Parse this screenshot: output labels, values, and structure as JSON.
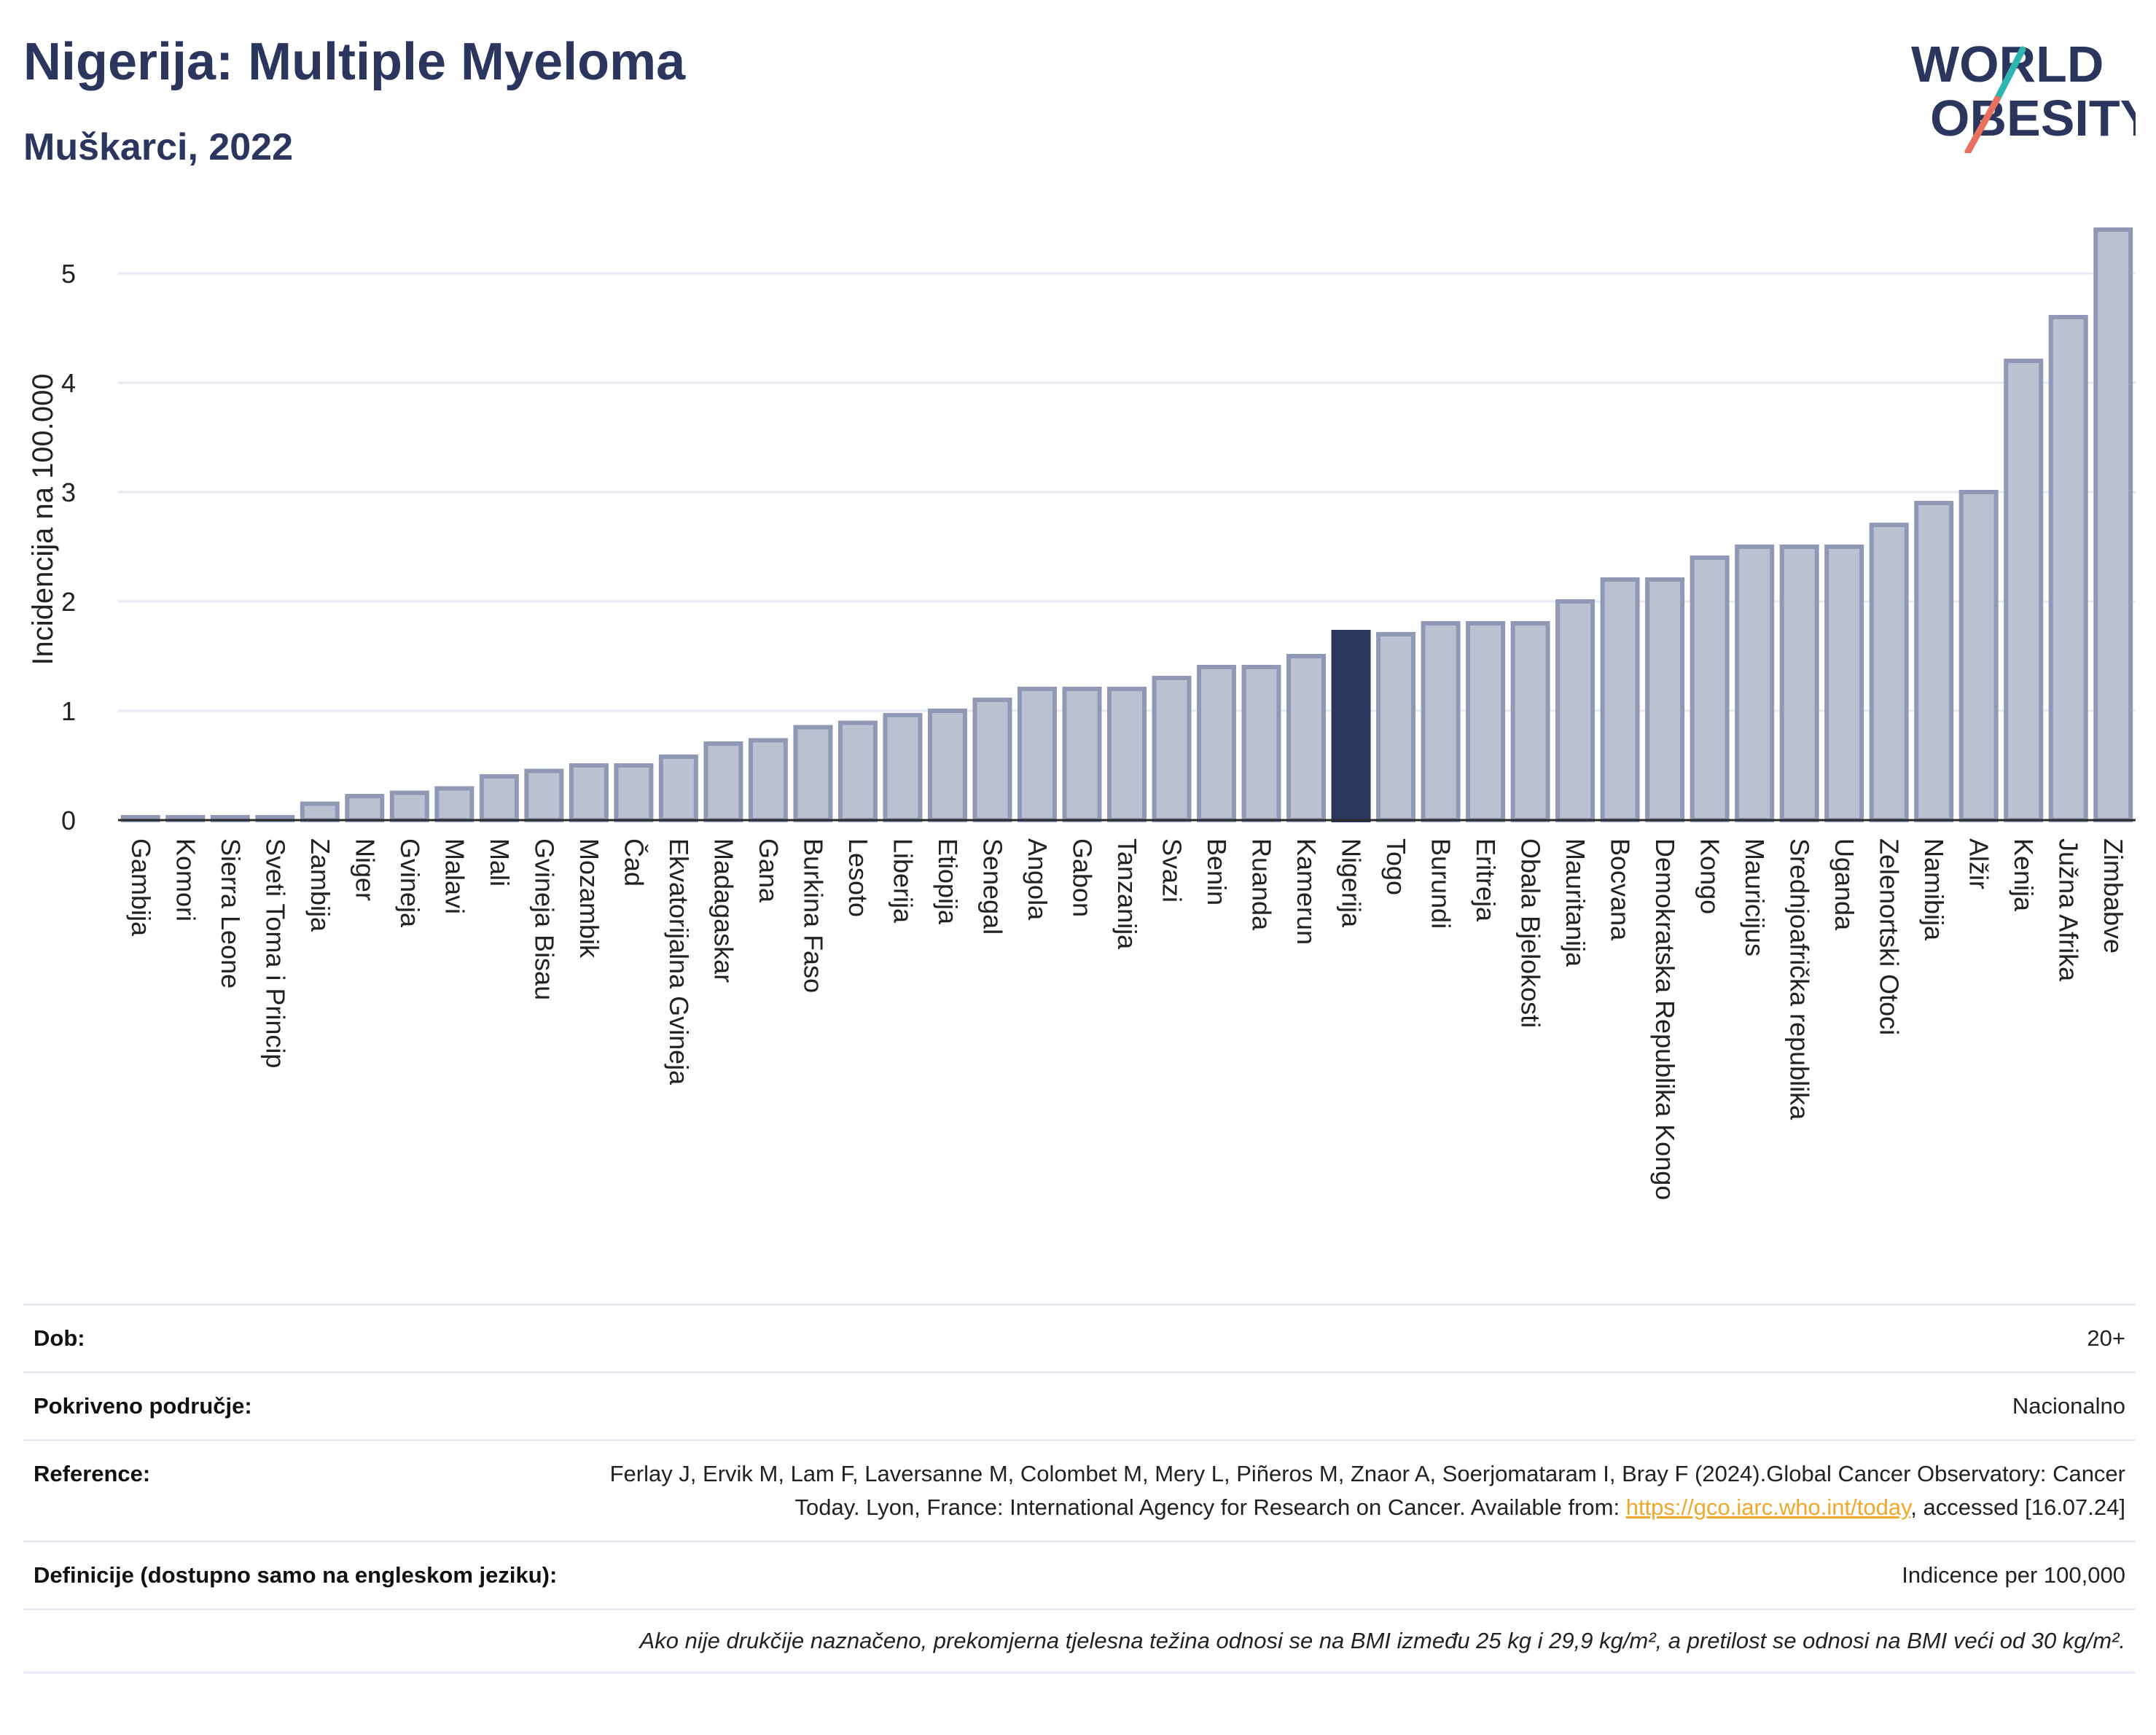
{
  "header": {
    "title": "Nigerija: Multiple Myeloma",
    "subtitle": "Muškarci, 2022"
  },
  "logo": {
    "line1": "WORLD",
    "line2": "OBESITY",
    "accent_teal": "#2fb6b0",
    "accent_coral": "#e8705e"
  },
  "colors": {
    "bar": "#bcc1d2",
    "bar_stroke": "#8f98b4",
    "highlight": "#2b365f",
    "grid": "#e6e9f1"
  },
  "chart_data": {
    "type": "bar",
    "ylabel": "Incidencija na 100.000",
    "ylim": [
      0,
      5.5
    ],
    "yticks": [
      0,
      1,
      2,
      3,
      4,
      5
    ],
    "highlight": "Nigerija",
    "categories": [
      "Gambija",
      "Komori",
      "Sierra Leone",
      "Sveti Toma i Princip",
      "Zambija",
      "Niger",
      "Gvineja",
      "Malavi",
      "Mali",
      "Gvineja Bisau",
      "Mozambik",
      "Čad",
      "Ekvatorijalna Gvineja",
      "Madagaskar",
      "Gana",
      "Burkina Faso",
      "Lesoto",
      "Liberija",
      "Etiopija",
      "Senegal",
      "Angola",
      "Gabon",
      "Tanzanija",
      "Svazi",
      "Benin",
      "Ruanda",
      "Kamerun",
      "Nigerija",
      "Togo",
      "Burundi",
      "Eritreja",
      "Obala Bjelokosti",
      "Mauritanija",
      "Bocvana",
      "Demokratska Republika Kongo",
      "Kongo",
      "Mauricijus",
      "Srednjoafrička republika",
      "Uganda",
      "Zelenortski Otoci",
      "Namibija",
      "Alžir",
      "Kenija",
      "Južna Afrika",
      "Zimbabve"
    ],
    "values": [
      0.02,
      0.02,
      0.02,
      0.02,
      0.15,
      0.22,
      0.25,
      0.29,
      0.4,
      0.45,
      0.5,
      0.5,
      0.58,
      0.7,
      0.73,
      0.85,
      0.89,
      0.96,
      1.0,
      1.1,
      1.2,
      1.2,
      1.2,
      1.3,
      1.4,
      1.4,
      1.5,
      1.72,
      1.7,
      1.8,
      1.8,
      1.8,
      2.0,
      2.2,
      2.2,
      2.4,
      2.5,
      2.5,
      2.5,
      2.7,
      2.9,
      3.0,
      4.2,
      4.6,
      5.4
    ]
  },
  "info": {
    "age_label": "Dob:",
    "age_value": "20+",
    "coverage_label": "Pokriveno područje:",
    "coverage_value": "Nacionalno",
    "reference_label": "Reference:",
    "reference_text": "Ferlay J, Ervik M, Lam F, Laversanne M, Colombet M, Mery L, Piñeros M, Znaor A, Soerjomataram I, Bray F (2024).Global Cancer Observatory: Cancer Today. Lyon, France: International Agency for Research on Cancer. Available from:",
    "reference_link": "https://gco.iarc.who.int/today",
    "reference_accessed": ", accessed [16.07.24]",
    "definitions_label": "Definicije (dostupno samo na engleskom jeziku):",
    "definitions_value": "Indicence per 100,000",
    "note": "Ako nije drukčije naznačeno, prekomjerna tjelesna težina odnosi se na BMI između 25 kg i 29,9 kg/m², a pretilost se odnosi na BMI veći od 30 kg/m²."
  }
}
